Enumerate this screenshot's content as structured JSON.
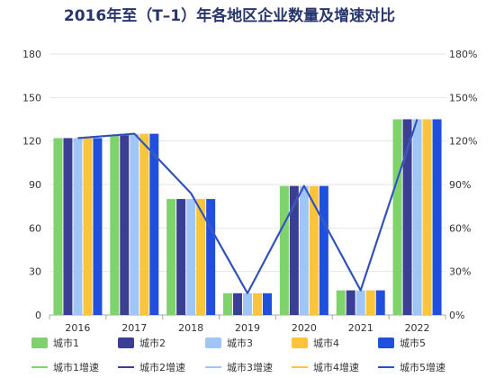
{
  "chart_data": {
    "type": "bar",
    "title": "2016年至（T–1）年各地区企业数量及增速对比",
    "xlabel": "",
    "ylabel": "",
    "categories": [
      "2016",
      "2017",
      "2018",
      "2019",
      "2020",
      "2021",
      "2022"
    ],
    "series": [
      {
        "name": "城市1",
        "type": "bar",
        "color": "#7fd36d",
        "values": [
          122,
          124,
          80,
          15,
          89,
          17,
          135
        ]
      },
      {
        "name": "城市2",
        "type": "bar",
        "color": "#3a3f94",
        "values": [
          122,
          125,
          80,
          15,
          89,
          17,
          135
        ]
      },
      {
        "name": "城市3",
        "type": "bar",
        "color": "#a0c6f8",
        "values": [
          122,
          125,
          80,
          15,
          89,
          17,
          135
        ]
      },
      {
        "name": "城市4",
        "type": "bar",
        "color": "#fbc43a",
        "values": [
          122,
          125,
          80,
          15,
          89,
          17,
          135
        ]
      },
      {
        "name": "城市5",
        "type": "bar",
        "color": "#1f4fdc",
        "values": [
          122,
          125,
          80,
          15,
          89,
          17,
          135
        ]
      }
    ],
    "line_series": [
      {
        "name": "城市1增速",
        "type": "line",
        "color": "#7fd36d",
        "values": [
          122,
          125,
          84,
          15,
          89,
          17,
          135
        ]
      },
      {
        "name": "城市2增速",
        "type": "line",
        "color": "#3a3f94",
        "values": [
          122,
          125,
          84,
          15,
          89,
          17,
          135
        ]
      },
      {
        "name": "城市3增速",
        "type": "line",
        "color": "#a0c6f8",
        "values": [
          122,
          125,
          84,
          15,
          89,
          17,
          135
        ]
      },
      {
        "name": "城市4增速",
        "type": "line",
        "color": "#fbc43a",
        "values": [
          122,
          125,
          84,
          15,
          89,
          17,
          135
        ]
      },
      {
        "name": "城市5增速",
        "type": "line",
        "color": "#2b4fc9",
        "values": [
          122,
          125,
          84,
          15,
          89,
          17,
          135
        ]
      }
    ],
    "ylim_left": [
      0,
      180
    ],
    "yticks_left": [
      "0",
      "30",
      "60",
      "90",
      "120",
      "150",
      "180"
    ],
    "ylim_right": [
      0,
      180
    ],
    "yticks_right": [
      "0%",
      "30%",
      "60%",
      "90%",
      "120%",
      "150%",
      "180%"
    ],
    "grid": true,
    "legend": "bottom"
  }
}
